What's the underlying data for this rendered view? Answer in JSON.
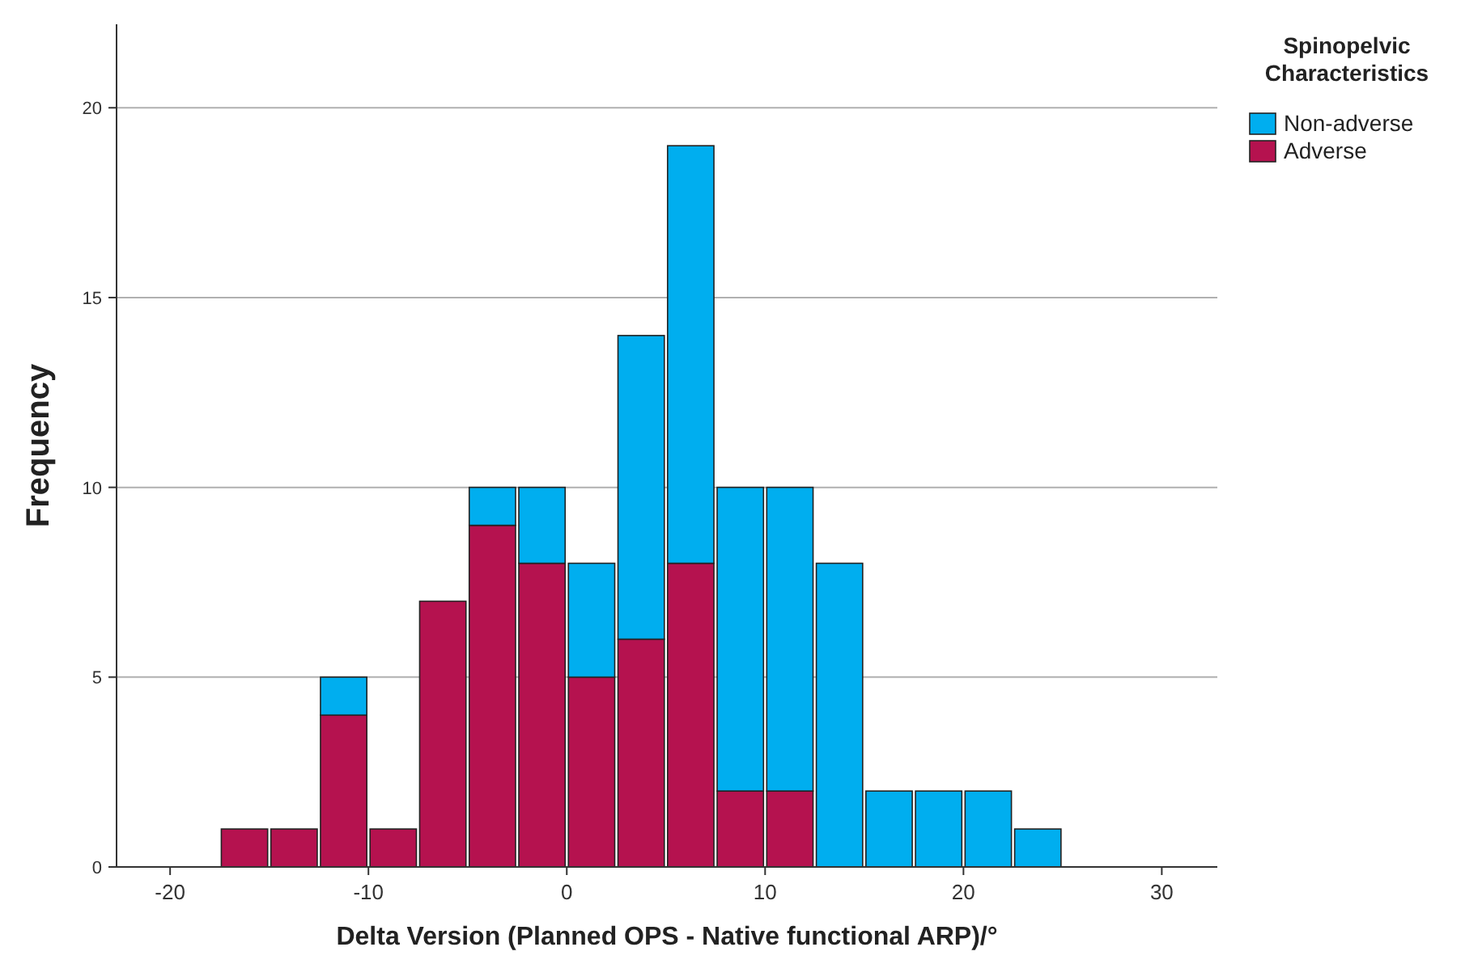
{
  "chart_data": {
    "type": "bar",
    "xlabel": "Delta Version (Planned OPS - Native functional ARP)/°",
    "ylabel": "Frequency",
    "legend_title": "Spinopelvic Characteristics",
    "legend": "top right",
    "grid": "y",
    "stacked": true,
    "x": [
      -16.25,
      -13.75,
      -11.25,
      -8.75,
      -6.25,
      -3.75,
      -1.25,
      1.25,
      3.75,
      6.25,
      8.75,
      11.25,
      13.75,
      16.25,
      18.75,
      21.25,
      23.75
    ],
    "series": [
      {
        "name": "Adverse",
        "color": "#b5124f",
        "values": [
          1,
          1,
          4,
          1,
          7,
          9,
          8,
          5,
          6,
          8,
          2,
          2,
          0,
          0,
          0,
          0,
          0
        ]
      },
      {
        "name": "Non-adverse",
        "color": "#00aeef",
        "values": [
          0,
          0,
          1,
          0,
          0,
          1,
          2,
          3,
          8,
          11,
          8,
          8,
          8,
          2,
          2,
          2,
          1
        ]
      }
    ],
    "xlim": [
      -22.7,
      32.8
    ],
    "xticks": [
      -20,
      -10,
      0,
      10,
      20,
      30
    ],
    "ylim": [
      0,
      22.2
    ],
    "yticks": [
      0,
      5,
      10,
      15,
      20
    ]
  }
}
